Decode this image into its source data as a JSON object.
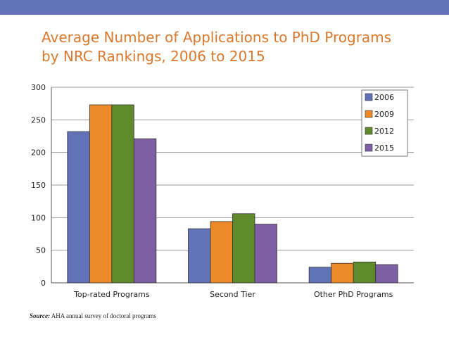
{
  "slide": {
    "title_line1": "Average Number of Applications to PhD Programs",
    "title_line2": "by NRC Rankings, 2006 to 2015",
    "source_label": "Source:",
    "source_text": " AHA annual survey of doctoral programs",
    "colors": {
      "bar": "#6272b8",
      "title": "#d9782d"
    }
  },
  "chart_data": {
    "type": "bar",
    "title": "Average Number of Applications to PhD Programs by NRC Rankings, 2006 to 2015",
    "xlabel": "",
    "ylabel": "",
    "ylim": [
      0,
      300
    ],
    "yticks": [
      0,
      50,
      100,
      150,
      200,
      250,
      300
    ],
    "grid": true,
    "legend": "top-right",
    "categories": [
      "Top-rated Programs",
      "Second Tier",
      "Other PhD Programs"
    ],
    "series": [
      {
        "name": "2006",
        "color": "#6272b8",
        "values": [
          232,
          83,
          24
        ]
      },
      {
        "name": "2009",
        "color": "#ec8a2a",
        "values": [
          273,
          94,
          30
        ]
      },
      {
        "name": "2012",
        "color": "#5e8a2c",
        "values": [
          273,
          106,
          32
        ]
      },
      {
        "name": "2015",
        "color": "#7d5fa3",
        "values": [
          221,
          90,
          28
        ]
      }
    ]
  }
}
